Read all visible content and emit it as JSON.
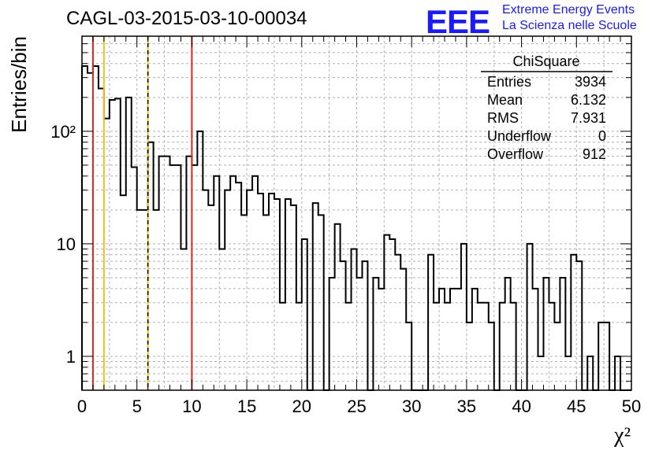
{
  "header": {
    "title": "CAGL-03-2015-03-10-00034",
    "logo": "EEE",
    "logo_line1": "Extreme Energy Events",
    "logo_line2": "La Scienza nelle Scuole"
  },
  "stats": {
    "name": "ChiSquare",
    "rows": [
      {
        "label": "Entries",
        "value": "3934"
      },
      {
        "label": "Mean",
        "value": "6.132"
      },
      {
        "label": "RMS",
        "value": "7.931"
      },
      {
        "label": "Underflow",
        "value": "0"
      },
      {
        "label": "Overflow",
        "value": "912"
      }
    ]
  },
  "colors": {
    "red_line": "#e8221c",
    "yellow_line": "#f0c419",
    "dashed_line": "#000000"
  },
  "chart_data": {
    "type": "bar",
    "subtype": "step-histogram",
    "xlabel": "χ²",
    "ylabel": "Entries/bin",
    "xlim": [
      0,
      50
    ],
    "ylim": [
      0.5,
      700
    ],
    "yscale": "log",
    "bin_width": 0.5,
    "grid": true,
    "x_ticks": [
      0,
      5,
      10,
      15,
      20,
      25,
      30,
      35,
      40,
      45,
      50
    ],
    "y_ticks": [
      {
        "value": 1,
        "label": "1"
      },
      {
        "value": 10,
        "label": "10"
      },
      {
        "value": 100,
        "label": "10²"
      }
    ],
    "vertical_lines": [
      {
        "x": 1,
        "color": "red_line",
        "style": "solid"
      },
      {
        "x": 2,
        "color": "yellow_line",
        "style": "solid"
      },
      {
        "x": 6,
        "color": "yellow_line",
        "style": "solid"
      },
      {
        "x": 6,
        "color": "dashed_line",
        "style": "dashed"
      },
      {
        "x": 10,
        "color": "red_line",
        "style": "solid"
      }
    ],
    "values": [
      380,
      330,
      380,
      240,
      130,
      190,
      195,
      27,
      200,
      48,
      20,
      20,
      80,
      20,
      60,
      60,
      50,
      50,
      9,
      60,
      50,
      100,
      30,
      22,
      40,
      9,
      30,
      40,
      35,
      18,
      30,
      40,
      28,
      18,
      28,
      25,
      3,
      25,
      22,
      3,
      11,
      0.3,
      23,
      18,
      0.3,
      5,
      15,
      7,
      3,
      9,
      5,
      7,
      0.3,
      5,
      4,
      12,
      11,
      8,
      6,
      2,
      0.3,
      0.3,
      0.3,
      8,
      3,
      4,
      3,
      4,
      4,
      10,
      2,
      4,
      3,
      3,
      2,
      0.3,
      3,
      5,
      3,
      0.3,
      0.3,
      10,
      4,
      1,
      5,
      3,
      2,
      5,
      1,
      8,
      7,
      0.3,
      1,
      0.3,
      2,
      2,
      0.3,
      1,
      0.3,
      0.3
    ]
  }
}
